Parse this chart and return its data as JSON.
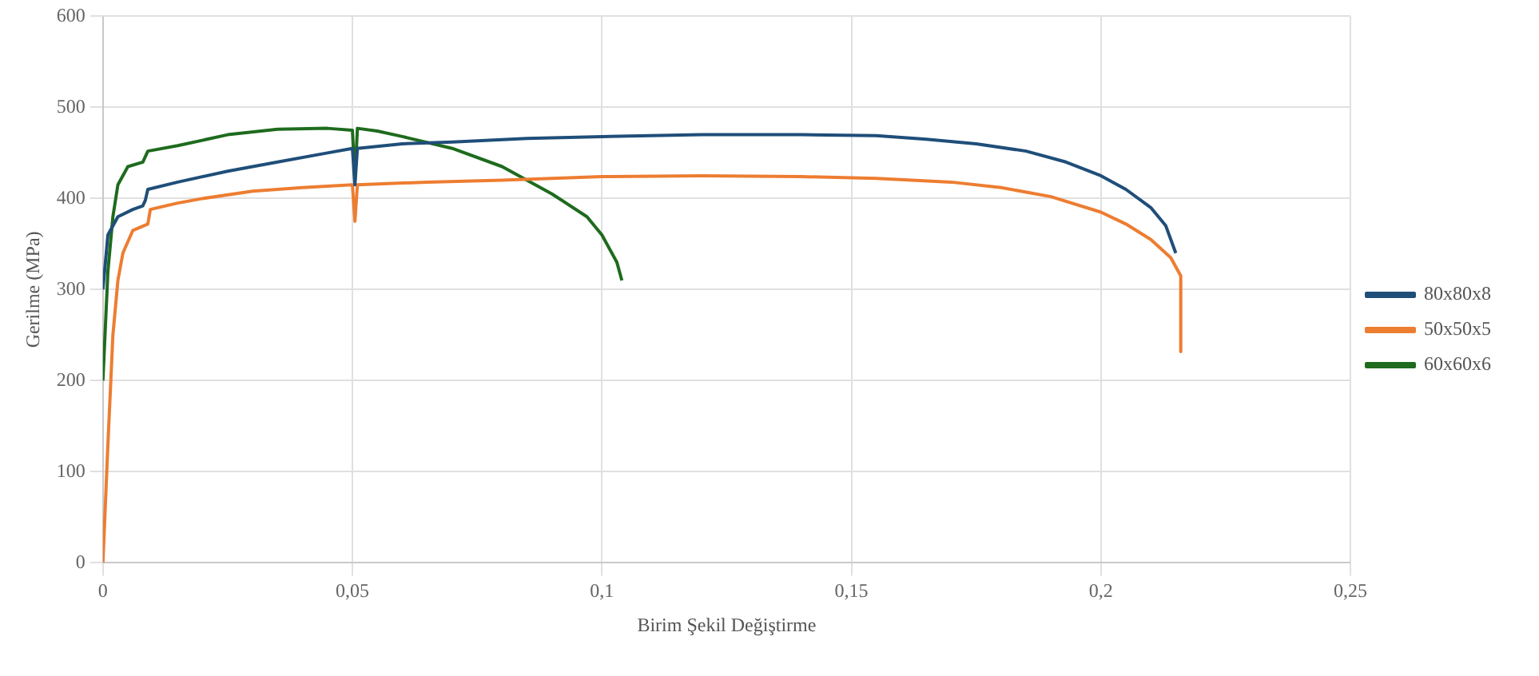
{
  "chart_data": {
    "type": "line",
    "xlabel": "Birim Şekil Değiştirme",
    "ylabel": "Gerilme (MPa)",
    "xlim": [
      0,
      0.25
    ],
    "xticks": [
      0,
      {
        "value": 0.05,
        "label": "0,05"
      },
      {
        "value": 0.1,
        "label": "0,1"
      },
      {
        "value": 0.15,
        "label": "0,15"
      },
      {
        "value": 0.2,
        "label": "0,2"
      },
      {
        "value": 0.25,
        "label": "0,25"
      }
    ],
    "ylim": [
      0,
      600
    ],
    "yticks": [
      0,
      100,
      200,
      300,
      400,
      500,
      600
    ],
    "grid": true,
    "legend": "right",
    "marker": "none",
    "line_style": "solid",
    "series": [
      {
        "name": "80x80x8",
        "color": "#1f4e79",
        "x": [
          0,
          0.001,
          0.003,
          0.006,
          0.008,
          0.0085,
          0.009,
          0.015,
          0.025,
          0.035,
          0.045,
          0.05,
          0.0505,
          0.051,
          0.06,
          0.07,
          0.085,
          0.1,
          0.12,
          0.14,
          0.155,
          0.165,
          0.175,
          0.185,
          0.193,
          0.2,
          0.205,
          0.21,
          0.213,
          0.215
        ],
        "values": [
          300,
          360,
          380,
          388,
          392,
          398,
          410,
          418,
          430,
          440,
          450,
          455,
          415,
          455,
          460,
          462,
          466,
          468,
          470,
          470,
          469,
          465,
          460,
          452,
          440,
          425,
          410,
          390,
          370,
          340
        ]
      },
      {
        "name": "50x50x5",
        "color": "#ed7d31",
        "x": [
          0,
          0.001,
          0.002,
          0.003,
          0.004,
          0.006,
          0.009,
          0.0095,
          0.015,
          0.02,
          0.03,
          0.04,
          0.05,
          0.0505,
          0.051,
          0.065,
          0.08,
          0.1,
          0.12,
          0.14,
          0.155,
          0.17,
          0.18,
          0.19,
          0.2,
          0.205,
          0.21,
          0.214,
          0.216,
          0.216
        ],
        "values": [
          0,
          130,
          250,
          310,
          340,
          365,
          372,
          388,
          395,
          400,
          408,
          412,
          415,
          375,
          415,
          418,
          420,
          424,
          425,
          424,
          422,
          418,
          412,
          402,
          385,
          372,
          355,
          335,
          315,
          232
        ]
      },
      {
        "name": "60x60x6",
        "color": "#1e6b1e",
        "x": [
          0,
          0.001,
          0.002,
          0.003,
          0.005,
          0.008,
          0.009,
          0.015,
          0.025,
          0.035,
          0.045,
          0.05,
          0.0505,
          0.051,
          0.055,
          0.06,
          0.07,
          0.08,
          0.09,
          0.097,
          0.1,
          0.103,
          0.104
        ],
        "values": [
          200,
          320,
          380,
          415,
          435,
          440,
          452,
          458,
          470,
          476,
          477,
          475,
          420,
          477,
          474,
          468,
          455,
          435,
          405,
          380,
          360,
          330,
          310
        ]
      }
    ]
  }
}
